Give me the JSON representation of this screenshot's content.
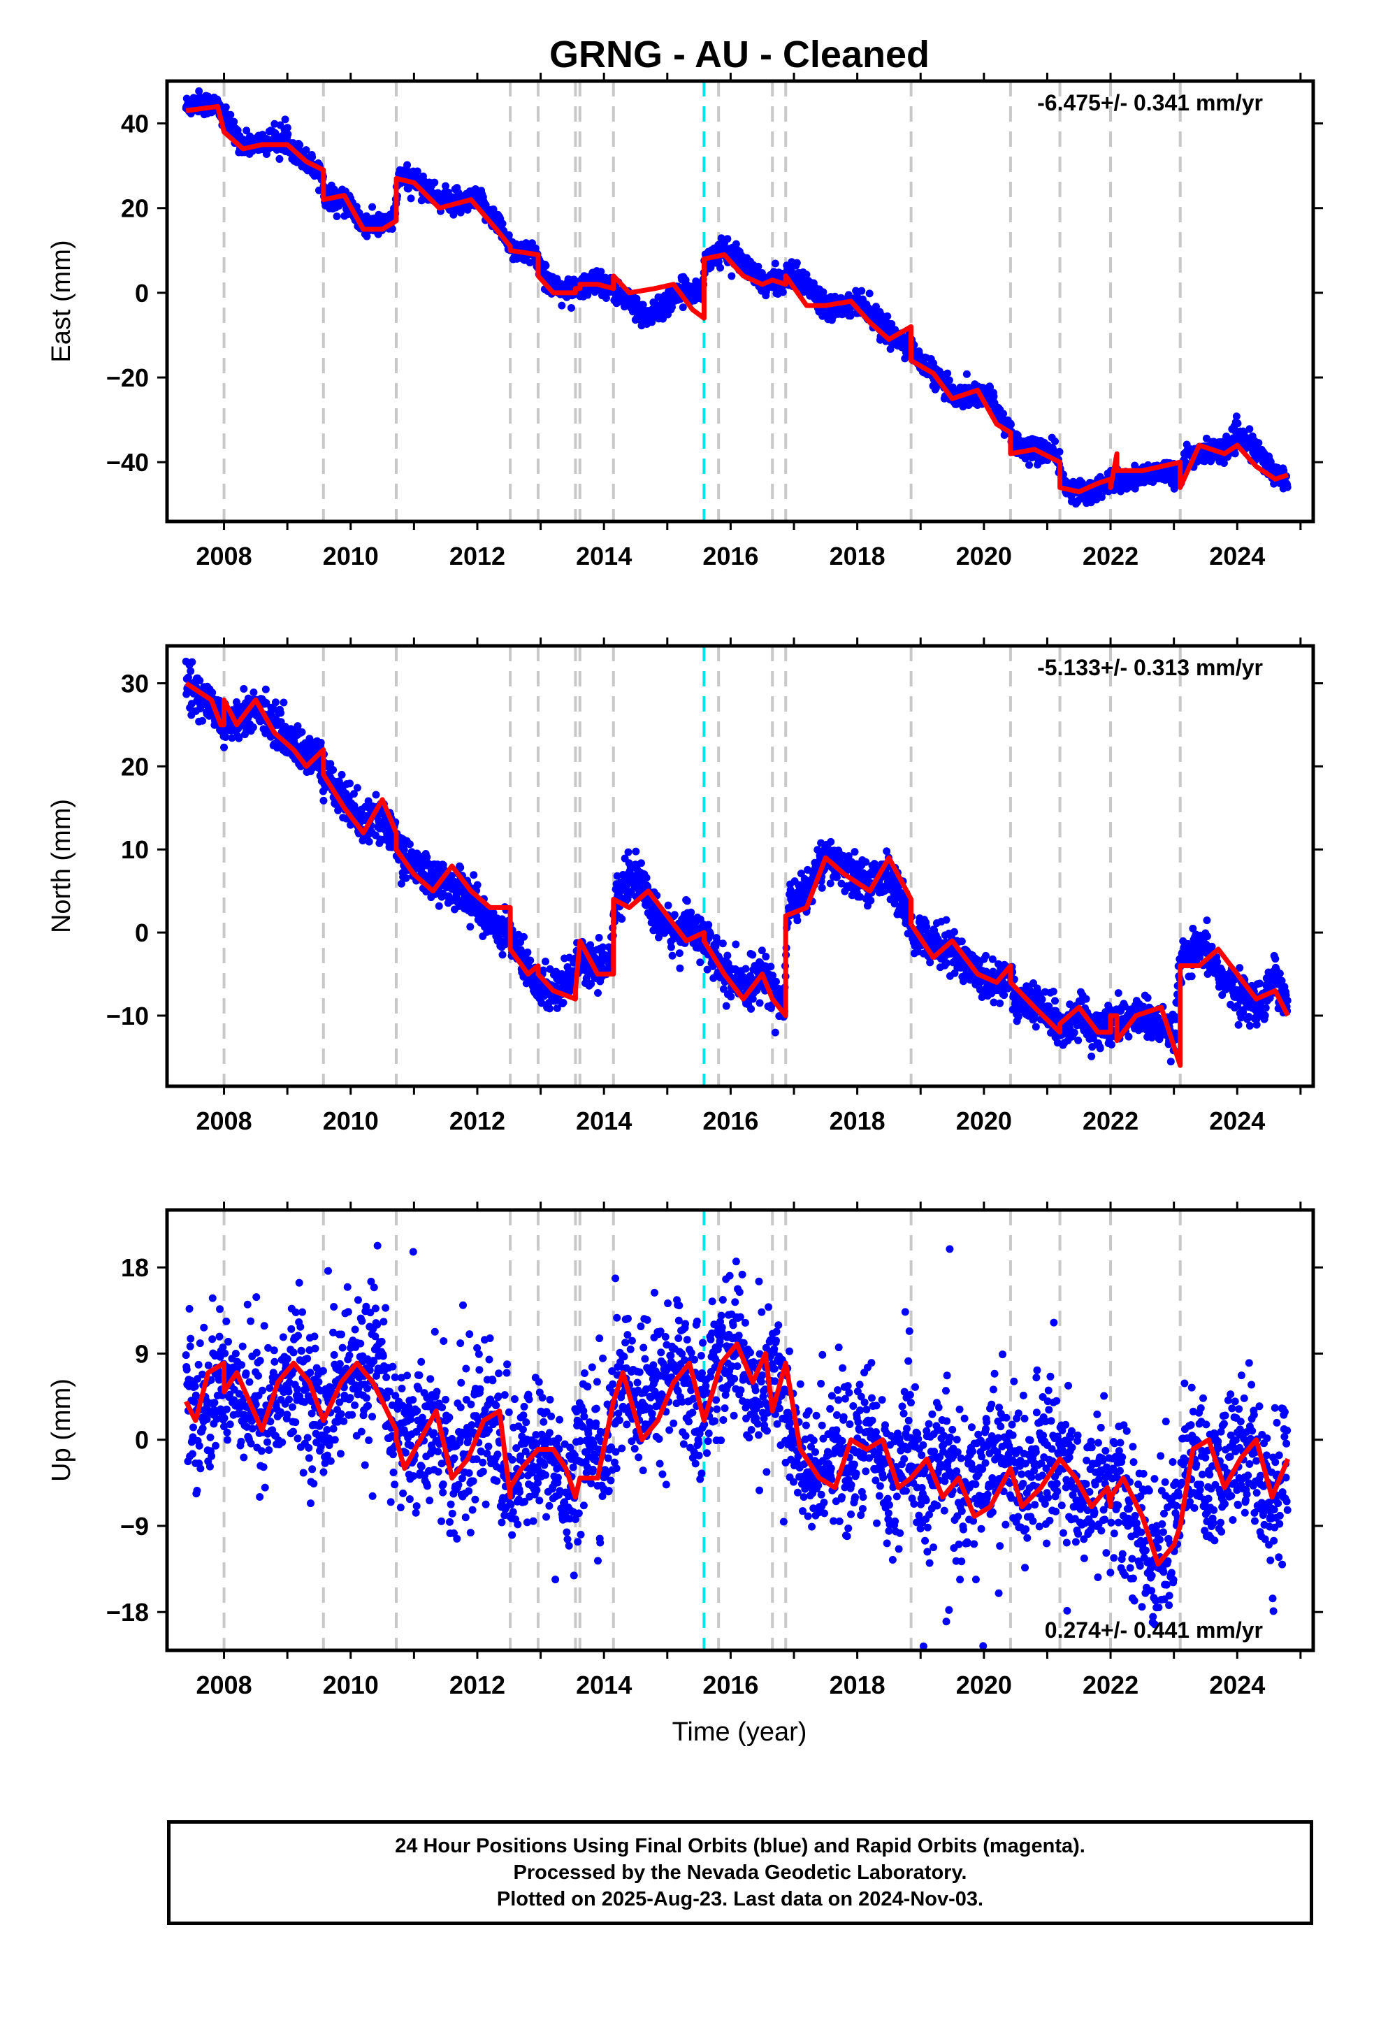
{
  "title": "GRNG  - AU - Cleaned",
  "colors": {
    "data": "#0000ff",
    "model": "#ff0000",
    "event_line": "#c8c8c8",
    "highlight_line": "#00e5e5",
    "frame": "#000000"
  },
  "event_years": [
    2008.0,
    2009.57,
    2010.72,
    2012.52,
    2012.96,
    2013.55,
    2013.62,
    2014.15,
    2015.58,
    2015.81,
    2016.66,
    2016.87,
    2018.85,
    2020.42,
    2021.2,
    2022.0,
    2023.1
  ],
  "highlight_year": 2015.58,
  "xaxis": {
    "label": "Time (year)",
    "ticks": [
      "2008",
      "2010",
      "2012",
      "2014",
      "2016",
      "2018",
      "2020",
      "2022",
      "2024"
    ]
  },
  "footer": {
    "line1": "24 Hour Positions Using Final Orbits (blue) and Rapid Orbits (magenta).",
    "line2": "Processed by the Nevada Geodetic Laboratory.",
    "line3": "Plotted on 2025-Aug-23. Last data on 2024-Nov-03."
  },
  "chart_data": [
    {
      "type": "scatter",
      "component": "east",
      "ylabel": "East (mm)",
      "rate_label": "-6.475+/- 0.341 mm/yr",
      "rate_position": "top-right",
      "xlim": [
        2007.1,
        2025.2
      ],
      "ylim": [
        -54,
        50
      ],
      "yticks": [
        40,
        20,
        0,
        -20,
        -40
      ],
      "ytick_labels": [
        "40",
        "20",
        "0",
        "−20",
        "−40"
      ],
      "series": [
        {
          "x": [
            2007.4,
            2007.6,
            2007.9,
            2008.0,
            2008.3,
            2008.5,
            2008.8,
            2009.0,
            2009.3,
            2009.55,
            2009.6,
            2009.9,
            2010.2,
            2010.5,
            2010.7,
            2010.75,
            2011.0,
            2011.4,
            2011.8,
            2012.0,
            2012.3,
            2012.5,
            2012.6,
            2012.9,
            2013.1,
            2013.4,
            2013.6,
            2013.9,
            2014.1,
            2014.4,
            2014.7,
            2015.0,
            2015.3,
            2015.55,
            2015.6,
            2015.9,
            2016.2,
            2016.5,
            2016.8,
            2016.9,
            2017.2,
            2017.5,
            2017.8,
            2018.0,
            2018.3,
            2018.6,
            2018.85,
            2018.9,
            2019.2,
            2019.5,
            2019.8,
            2020.1,
            2020.4,
            2020.5,
            2020.8,
            2021.1,
            2021.2,
            2021.3,
            2021.6,
            2021.9,
            2022.0,
            2022.1,
            2022.4,
            2022.7,
            2023.0,
            2023.1,
            2023.2,
            2023.5,
            2023.8,
            2024.0,
            2024.3,
            2024.6,
            2024.8
          ],
          "y": [
            44,
            45,
            44,
            41,
            35,
            35,
            36,
            36,
            31,
            28,
            23,
            22,
            16,
            16,
            18,
            27,
            27,
            22,
            21,
            22,
            17,
            12,
            10,
            9,
            3,
            0,
            1,
            3,
            1,
            -2,
            -6,
            -2,
            1,
            0,
            8,
            10,
            7,
            2,
            3,
            5,
            2,
            -3,
            -3,
            -2,
            -6,
            -11,
            -12,
            -15,
            -19,
            -24,
            -24,
            -25,
            -32,
            -36,
            -37,
            -38,
            -41,
            -46,
            -47,
            -46,
            -44,
            -45,
            -44,
            -42,
            -42,
            -44,
            -38,
            -38,
            -37,
            -34,
            -37,
            -43,
            -44
          ]
        }
      ],
      "model": {
        "x": [
          2007.4,
          2007.9,
          2008.0,
          2008.3,
          2008.6,
          2009.0,
          2009.3,
          2009.57,
          2009.57,
          2009.9,
          2010.2,
          2010.5,
          2010.72,
          2010.72,
          2011.0,
          2011.4,
          2011.9,
          2012.3,
          2012.52,
          2012.52,
          2012.96,
          2012.96,
          2013.2,
          2013.55,
          2013.55,
          2013.62,
          2013.62,
          2013.9,
          2014.15,
          2014.15,
          2014.4,
          2014.8,
          2015.1,
          2015.4,
          2015.58,
          2015.58,
          2015.9,
          2016.2,
          2016.5,
          2016.66,
          2016.66,
          2016.87,
          2016.87,
          2017.2,
          2017.5,
          2017.9,
          2018.2,
          2018.5,
          2018.85,
          2018.85,
          2019.2,
          2019.5,
          2019.9,
          2020.2,
          2020.42,
          2020.42,
          2020.8,
          2021.2,
          2021.2,
          2021.5,
          2021.8,
          2022.0,
          2022.0,
          2022.1,
          2022.1,
          2022.5,
          2022.8,
          2023.1,
          2023.1,
          2023.4,
          2023.8,
          2024.0,
          2024.3,
          2024.6,
          2024.8
        ],
        "y": [
          43,
          44,
          38,
          34,
          35,
          35,
          31,
          29,
          22,
          23,
          15,
          15,
          17,
          27,
          26,
          20,
          22,
          15,
          11,
          10,
          9,
          4,
          0,
          0,
          1,
          1,
          2,
          2,
          1,
          4,
          0,
          1,
          2,
          -4,
          -6,
          8,
          9,
          4,
          2,
          3,
          3,
          2,
          4,
          -3,
          -3,
          -2,
          -7,
          -11,
          -8,
          -16,
          -19,
          -25,
          -23,
          -31,
          -33,
          -38,
          -37,
          -40,
          -46,
          -47,
          -45,
          -44,
          -46,
          -38,
          -42,
          -42,
          -41,
          -40,
          -46,
          -36,
          -38,
          -36,
          -41,
          -44,
          -43
        ]
      }
    },
    {
      "type": "scatter",
      "component": "north",
      "ylabel": "North (mm)",
      "rate_label": "-5.133+/- 0.313 mm/yr",
      "rate_position": "top-right",
      "xlim": [
        2007.1,
        2025.2
      ],
      "ylim": [
        -18.5,
        34.5
      ],
      "yticks": [
        30,
        20,
        10,
        0,
        -10
      ],
      "ytick_labels": [
        "30",
        "20",
        "10",
        "0",
        "−10"
      ],
      "series": [
        {
          "x": [
            2007.4,
            2007.6,
            2007.9,
            2008.0,
            2008.3,
            2008.6,
            2008.9,
            2009.2,
            2009.5,
            2009.6,
            2009.9,
            2010.2,
            2010.5,
            2010.7,
            2010.75,
            2011.0,
            2011.4,
            2011.8,
            2012.1,
            2012.4,
            2012.5,
            2012.6,
            2012.9,
            2013.2,
            2013.5,
            2013.6,
            2013.9,
            2014.1,
            2014.2,
            2014.5,
            2014.8,
            2015.1,
            2015.4,
            2015.6,
            2015.9,
            2016.2,
            2016.5,
            2016.7,
            2016.85,
            2016.9,
            2017.2,
            2017.5,
            2017.9,
            2018.2,
            2018.5,
            2018.85,
            2018.9,
            2019.2,
            2019.5,
            2019.9,
            2020.2,
            2020.4,
            2020.5,
            2020.8,
            2021.1,
            2021.2,
            2021.5,
            2021.8,
            2022.0,
            2022.1,
            2022.4,
            2022.7,
            2023.0,
            2023.1,
            2023.2,
            2023.5,
            2023.8,
            2024.0,
            2024.3,
            2024.6,
            2024.8
          ],
          "y": [
            31,
            28,
            27,
            25,
            26,
            27,
            24,
            22,
            21,
            19,
            16,
            13,
            14,
            12,
            10,
            8,
            6,
            5,
            2,
            0,
            1,
            -2,
            -6,
            -7,
            -5,
            -3,
            -4,
            -3,
            4,
            7,
            2,
            0,
            1,
            -1,
            -5,
            -7,
            -5,
            -7,
            -9,
            3,
            5,
            9,
            7,
            6,
            7,
            1,
            0,
            -1,
            -2,
            -5,
            -6,
            -5,
            -8,
            -9,
            -10,
            -12,
            -10,
            -12,
            -11,
            -11,
            -10,
            -11,
            -13,
            -4,
            -3,
            -2,
            -6,
            -7,
            -9,
            -5,
            -9
          ]
        }
      ],
      "model": {
        "x": [
          2007.4,
          2007.8,
          2007.95,
          2008.0,
          2008.0,
          2008.2,
          2008.5,
          2008.8,
          2009.1,
          2009.3,
          2009.57,
          2009.57,
          2009.9,
          2010.2,
          2010.5,
          2010.72,
          2010.72,
          2011.0,
          2011.3,
          2011.6,
          2011.9,
          2012.2,
          2012.52,
          2012.52,
          2012.8,
          2012.96,
          2012.96,
          2013.2,
          2013.55,
          2013.55,
          2013.62,
          2013.62,
          2013.9,
          2014.15,
          2014.15,
          2014.4,
          2014.7,
          2015.0,
          2015.3,
          2015.58,
          2015.58,
          2015.9,
          2016.2,
          2016.5,
          2016.66,
          2016.66,
          2016.87,
          2016.87,
          2017.2,
          2017.5,
          2017.8,
          2018.2,
          2018.5,
          2018.85,
          2018.85,
          2019.2,
          2019.5,
          2019.9,
          2020.2,
          2020.42,
          2020.42,
          2020.8,
          2021.2,
          2021.2,
          2021.5,
          2021.8,
          2022.0,
          2022.0,
          2022.1,
          2022.1,
          2022.4,
          2022.8,
          2023.1,
          2023.1,
          2023.4,
          2023.7,
          2024.0,
          2024.3,
          2024.6,
          2024.8
        ],
        "y": [
          30,
          28,
          25,
          25,
          28,
          25,
          28,
          24,
          22,
          20,
          22,
          19,
          15,
          12,
          16,
          12,
          10,
          7,
          5,
          8,
          5,
          3,
          3,
          -2,
          -5,
          -4,
          -5,
          -7,
          -8,
          -7,
          -1,
          -1,
          -5,
          -5,
          4,
          3,
          5,
          2,
          -1,
          0,
          -1,
          -5,
          -8,
          -5,
          -8,
          -8,
          -10,
          2,
          3,
          9,
          7,
          5,
          9,
          4,
          1,
          -3,
          -1,
          -5,
          -6,
          -4,
          -6,
          -9,
          -12,
          -11,
          -9,
          -12,
          -12,
          -10,
          -10,
          -13,
          -10,
          -9,
          -16,
          -4,
          -4,
          -2,
          -5,
          -8,
          -7,
          -10
        ]
      }
    },
    {
      "type": "scatter",
      "component": "up",
      "ylabel": "Up (mm)",
      "rate_label": "0.274+/- 0.441 mm/yr",
      "rate_position": "bottom-right",
      "xlim": [
        2007.1,
        2025.2
      ],
      "ylim": [
        -22,
        24
      ],
      "yticks": [
        18,
        9,
        0,
        -9,
        -18
      ],
      "ytick_labels": [
        "18",
        "9",
        "0",
        "−9",
        "−18"
      ],
      "series": [
        {
          "x": [
            2007.4,
            2007.7,
            2008.0,
            2008.3,
            2008.6,
            2008.9,
            2009.2,
            2009.5,
            2009.8,
            2010.1,
            2010.4,
            2010.7,
            2011.0,
            2011.3,
            2011.6,
            2011.9,
            2012.2,
            2012.5,
            2012.8,
            2013.1,
            2013.4,
            2013.7,
            2014.0,
            2014.3,
            2014.6,
            2014.9,
            2015.2,
            2015.5,
            2015.8,
            2016.1,
            2016.4,
            2016.7,
            2017.0,
            2017.3,
            2017.6,
            2017.9,
            2018.2,
            2018.5,
            2018.8,
            2019.1,
            2019.4,
            2019.7,
            2020.0,
            2020.3,
            2020.6,
            2020.9,
            2021.2,
            2021.5,
            2021.8,
            2022.1,
            2022.4,
            2022.7,
            2023.0,
            2023.3,
            2023.6,
            2023.9,
            2024.2,
            2024.5,
            2024.8
          ],
          "y": [
            5,
            3,
            7,
            5,
            2,
            5,
            7,
            2,
            6,
            7,
            8,
            1,
            0,
            2,
            -3,
            -1,
            3,
            -5,
            -2,
            -1,
            -6,
            1,
            -3,
            7,
            3,
            6,
            8,
            2,
            9,
            10,
            4,
            8,
            -1,
            -5,
            0,
            -3,
            1,
            -5,
            -1,
            -6,
            -1,
            -7,
            -2,
            -1,
            -5,
            -2,
            -1,
            -7,
            -4,
            -5,
            -9,
            -13,
            -9,
            -1,
            -6,
            -2,
            0,
            -7,
            -2
          ]
        }
      ],
      "model": {
        "x": [
          2007.4,
          2007.55,
          2007.75,
          2008.0,
          2008.0,
          2008.2,
          2008.4,
          2008.6,
          2008.85,
          2009.1,
          2009.35,
          2009.57,
          2009.57,
          2009.85,
          2010.1,
          2010.35,
          2010.5,
          2010.72,
          2010.72,
          2010.85,
          2011.1,
          2011.35,
          2011.6,
          2011.85,
          2012.1,
          2012.35,
          2012.52,
          2012.52,
          2012.7,
          2012.96,
          2012.96,
          2013.2,
          2013.4,
          2013.55,
          2013.55,
          2013.62,
          2013.62,
          2013.9,
          2014.15,
          2014.15,
          2014.3,
          2014.6,
          2014.85,
          2015.1,
          2015.35,
          2015.58,
          2015.58,
          2015.85,
          2016.1,
          2016.35,
          2016.55,
          2016.66,
          2016.66,
          2016.87,
          2016.87,
          2017.1,
          2017.4,
          2017.65,
          2017.9,
          2018.15,
          2018.4,
          2018.65,
          2018.85,
          2018.85,
          2019.1,
          2019.35,
          2019.6,
          2019.85,
          2020.1,
          2020.42,
          2020.42,
          2020.6,
          2020.9,
          2021.2,
          2021.2,
          2021.45,
          2021.7,
          2021.95,
          2022.0,
          2022.0,
          2022.2,
          2022.5,
          2022.75,
          2023.0,
          2023.1,
          2023.1,
          2023.3,
          2023.55,
          2023.8,
          2024.05,
          2024.3,
          2024.55,
          2024.8
        ],
        "y": [
          4,
          2,
          7,
          8,
          5,
          7,
          4,
          1,
          6,
          8,
          6,
          2,
          2,
          6,
          8,
          6,
          4,
          1,
          0,
          -3,
          0,
          3,
          -4,
          -2,
          2,
          3,
          -6,
          -5,
          -3,
          -1,
          -1,
          -1,
          -3,
          -6,
          -6,
          -4,
          -4,
          -4,
          4,
          4,
          7,
          0,
          2,
          6,
          8,
          2,
          2,
          8,
          10,
          6,
          9,
          3,
          3,
          8,
          8,
          -1,
          -4,
          -5,
          0,
          -1,
          0,
          -5,
          -4,
          -4,
          -2,
          -6,
          -4,
          -8,
          -7,
          -3,
          -3,
          -7,
          -5,
          -2,
          -2,
          -4,
          -7,
          -5,
          -7,
          -6,
          -4,
          -8,
          -13,
          -11,
          -9,
          -9,
          -1,
          0,
          -5,
          -2,
          0,
          -6,
          -2
        ]
      }
    }
  ]
}
